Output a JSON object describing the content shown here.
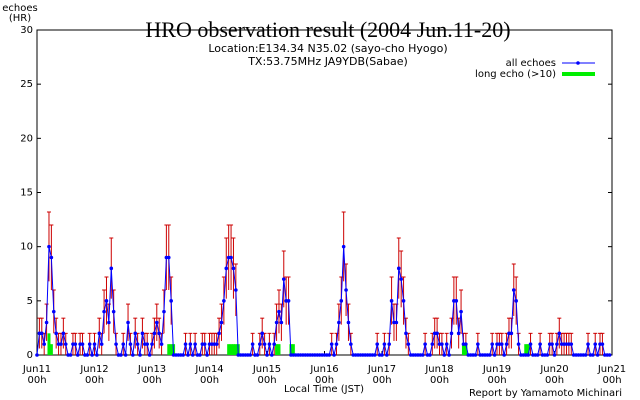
{
  "chart_data": {
    "type": "line",
    "title": "HRO observation result (2004 Jun.11-20)",
    "subtitle": [
      "Location:E134.34 N35.02 (sayo-cho Hyogo)",
      "TX:53.75MHz JA9YDB(Sabae)"
    ],
    "ylabel": [
      "echoes",
      "(HR)"
    ],
    "xlabel": "Local Time (JST)",
    "credit": "Report by Yamamoto Michinari",
    "legend": "top-right",
    "xlim": [
      0,
      240
    ],
    "ylim": [
      0,
      30
    ],
    "yticks": [
      0,
      5,
      10,
      15,
      20,
      25,
      30
    ],
    "xticks": [
      {
        "value": 0,
        "label": "Jun11"
      },
      {
        "value": 24,
        "label": "Jun12"
      },
      {
        "value": 48,
        "label": "Jun13"
      },
      {
        "value": 72,
        "label": "Jun14"
      },
      {
        "value": 96,
        "label": "Jun15"
      },
      {
        "value": 120,
        "label": "Jun16"
      },
      {
        "value": 144,
        "label": "Jun17"
      },
      {
        "value": 168,
        "label": "Jun18"
      },
      {
        "value": 192,
        "label": "Jun19"
      },
      {
        "value": 216,
        "label": "Jun20"
      },
      {
        "value": 240,
        "label": "Jun21"
      }
    ],
    "xtick_sublabels": [
      "00h",
      "00h",
      "00h",
      "00h",
      "00h",
      "00h",
      "00h",
      "00h",
      "00h",
      "00h",
      "00h"
    ],
    "series": [
      {
        "name": "all echoes",
        "color": "#0000ff",
        "error_color": "#cc0000",
        "x": [
          0,
          1,
          2,
          3,
          4,
          5,
          6,
          7,
          8,
          9,
          10,
          11,
          12,
          13,
          14,
          15,
          16,
          17,
          18,
          19,
          20,
          21,
          22,
          23,
          24,
          25,
          26,
          27,
          28,
          29,
          30,
          31,
          32,
          33,
          34,
          35,
          36,
          37,
          38,
          39,
          40,
          41,
          42,
          43,
          44,
          45,
          46,
          47,
          48,
          49,
          50,
          51,
          52,
          53,
          54,
          55,
          56,
          57,
          58,
          59,
          60,
          61,
          62,
          63,
          64,
          65,
          66,
          67,
          68,
          69,
          70,
          71,
          72,
          73,
          74,
          75,
          76,
          77,
          78,
          79,
          80,
          81,
          82,
          83,
          84,
          85,
          86,
          87,
          88,
          89,
          90,
          91,
          92,
          93,
          94,
          95,
          96,
          97,
          98,
          99,
          100,
          101,
          102,
          103,
          104,
          105,
          106,
          107,
          108,
          109,
          110,
          111,
          112,
          113,
          114,
          115,
          116,
          117,
          118,
          119,
          120,
          121,
          122,
          123,
          124,
          125,
          126,
          127,
          128,
          129,
          130,
          131,
          132,
          133,
          134,
          135,
          136,
          137,
          138,
          139,
          140,
          141,
          142,
          143,
          144,
          145,
          146,
          147,
          148,
          149,
          150,
          151,
          152,
          153,
          154,
          155,
          156,
          157,
          158,
          159,
          160,
          161,
          162,
          163,
          164,
          165,
          166,
          167,
          168,
          169,
          170,
          171,
          172,
          173,
          174,
          175,
          176,
          177,
          178,
          179,
          180,
          181,
          182,
          183,
          184,
          185,
          186,
          187,
          188,
          189,
          190,
          191,
          192,
          193,
          194,
          195,
          196,
          197,
          198,
          199,
          200,
          201,
          202,
          203,
          204,
          205,
          206,
          207,
          208,
          209,
          210,
          211,
          212,
          213,
          214,
          215,
          216,
          217,
          218,
          219,
          220,
          221,
          222,
          223,
          224,
          225,
          226,
          227,
          228,
          229,
          230,
          231,
          232,
          233,
          234,
          235,
          236,
          237,
          238,
          239
        ],
        "values": [
          0,
          2,
          2,
          1,
          3,
          10,
          9,
          4,
          2,
          1,
          1,
          2,
          1,
          0,
          0,
          1,
          1,
          0,
          1,
          1,
          0,
          0,
          1,
          0,
          1,
          0,
          2,
          1,
          4,
          5,
          3,
          8,
          4,
          1,
          0,
          0,
          1,
          0,
          3,
          1,
          0,
          2,
          1,
          0,
          2,
          1,
          1,
          0,
          1,
          2,
          3,
          2,
          1,
          4,
          9,
          9,
          5,
          0,
          0,
          0,
          0,
          0,
          1,
          0,
          1,
          0,
          1,
          0,
          0,
          1,
          1,
          0,
          1,
          1,
          1,
          1,
          2,
          3,
          5,
          8,
          9,
          9,
          8,
          6,
          0,
          0,
          0,
          0,
          0,
          0,
          1,
          0,
          0,
          1,
          2,
          1,
          0,
          1,
          0,
          1,
          3,
          4,
          3,
          7,
          5,
          5,
          0,
          0,
          0,
          0,
          0,
          0,
          0,
          0,
          0,
          0,
          0,
          0,
          0,
          0,
          0,
          0,
          0,
          1,
          0,
          1,
          3,
          5,
          10,
          6,
          3,
          1,
          0,
          0,
          0,
          0,
          0,
          0,
          0,
          0,
          0,
          0,
          1,
          0,
          0,
          1,
          0,
          1,
          5,
          3,
          3,
          8,
          7,
          5,
          2,
          1,
          0,
          0,
          0,
          0,
          0,
          0,
          1,
          0,
          0,
          1,
          2,
          2,
          1,
          1,
          0,
          1,
          0,
          2,
          5,
          5,
          2,
          4,
          1,
          1,
          0,
          0,
          0,
          0,
          1,
          0,
          0,
          0,
          0,
          0,
          1,
          0,
          1,
          1,
          1,
          0,
          1,
          2,
          2,
          6,
          5,
          1,
          0,
          0,
          0,
          0,
          1,
          0,
          0,
          0,
          1,
          0,
          0,
          0,
          1,
          1,
          0,
          1,
          2,
          1,
          1,
          1,
          1,
          1,
          0,
          0,
          0,
          0,
          0,
          0,
          1,
          0,
          0,
          1,
          0,
          1,
          1,
          0,
          0,
          0
        ],
        "errors": [
          0,
          1.4,
          1.4,
          1,
          1.7,
          3.2,
          3,
          2,
          1.4,
          1,
          1,
          1.4,
          1,
          0,
          0,
          1,
          1,
          0,
          1,
          1,
          0,
          0,
          1,
          0,
          1,
          0,
          1.4,
          1,
          2,
          2.2,
          1.7,
          2.8,
          2,
          1,
          0,
          0,
          1,
          0,
          1.7,
          1,
          0,
          1.4,
          1,
          0,
          1.4,
          1,
          1,
          0,
          1,
          1.4,
          1.7,
          1.4,
          1,
          2,
          3,
          3,
          2.2,
          0,
          0,
          0,
          0,
          0,
          1,
          0,
          1,
          0,
          1,
          0,
          0,
          1,
          1,
          0,
          1,
          1,
          1,
          1,
          1.4,
          1.7,
          2.2,
          2.8,
          3,
          3,
          2.8,
          2.4,
          0,
          0,
          0,
          0,
          0,
          0,
          1,
          0,
          0,
          1,
          1.4,
          1,
          0,
          1,
          0,
          1,
          1.7,
          2,
          1.7,
          2.6,
          2.2,
          2.2,
          0,
          0,
          0,
          0,
          0,
          0,
          0,
          0,
          0,
          0,
          0,
          0,
          0,
          0,
          0,
          0,
          0,
          1,
          0,
          1,
          1.7,
          2.2,
          3.2,
          2.4,
          1.7,
          1,
          0,
          0,
          0,
          0,
          0,
          0,
          0,
          0,
          0,
          0,
          1,
          0,
          0,
          1,
          0,
          1,
          2.2,
          1.7,
          1.7,
          2.8,
          2.6,
          2.2,
          1.4,
          1,
          0,
          0,
          0,
          0,
          0,
          0,
          1,
          0,
          0,
          1,
          1.4,
          1.4,
          1,
          1,
          0,
          1,
          0,
          1.4,
          2.2,
          2.2,
          1.4,
          2,
          1,
          1,
          0,
          0,
          0,
          0,
          1,
          0,
          0,
          0,
          0,
          0,
          1,
          0,
          1,
          1,
          1,
          0,
          1,
          1.4,
          1.4,
          2.4,
          2.2,
          1,
          0,
          0,
          0,
          0,
          1,
          0,
          0,
          0,
          1,
          0,
          0,
          0,
          1,
          1,
          0,
          1,
          1.4,
          1,
          1,
          1,
          1,
          1,
          0,
          0,
          0,
          0,
          0,
          0,
          1,
          0,
          0,
          1,
          0,
          1,
          1,
          0,
          0,
          0
        ]
      },
      {
        "name": "long echo (>10)",
        "color": "#00ee00",
        "x": [
          5,
          6,
          55,
          56,
          57,
          80,
          81,
          82,
          83,
          84,
          100,
          101,
          106,
          107,
          178,
          179,
          204,
          205
        ],
        "values": [
          2,
          1,
          1,
          1,
          1,
          1,
          1,
          1,
          1,
          1,
          1,
          1,
          1,
          1,
          1,
          1,
          1,
          1
        ]
      }
    ]
  }
}
